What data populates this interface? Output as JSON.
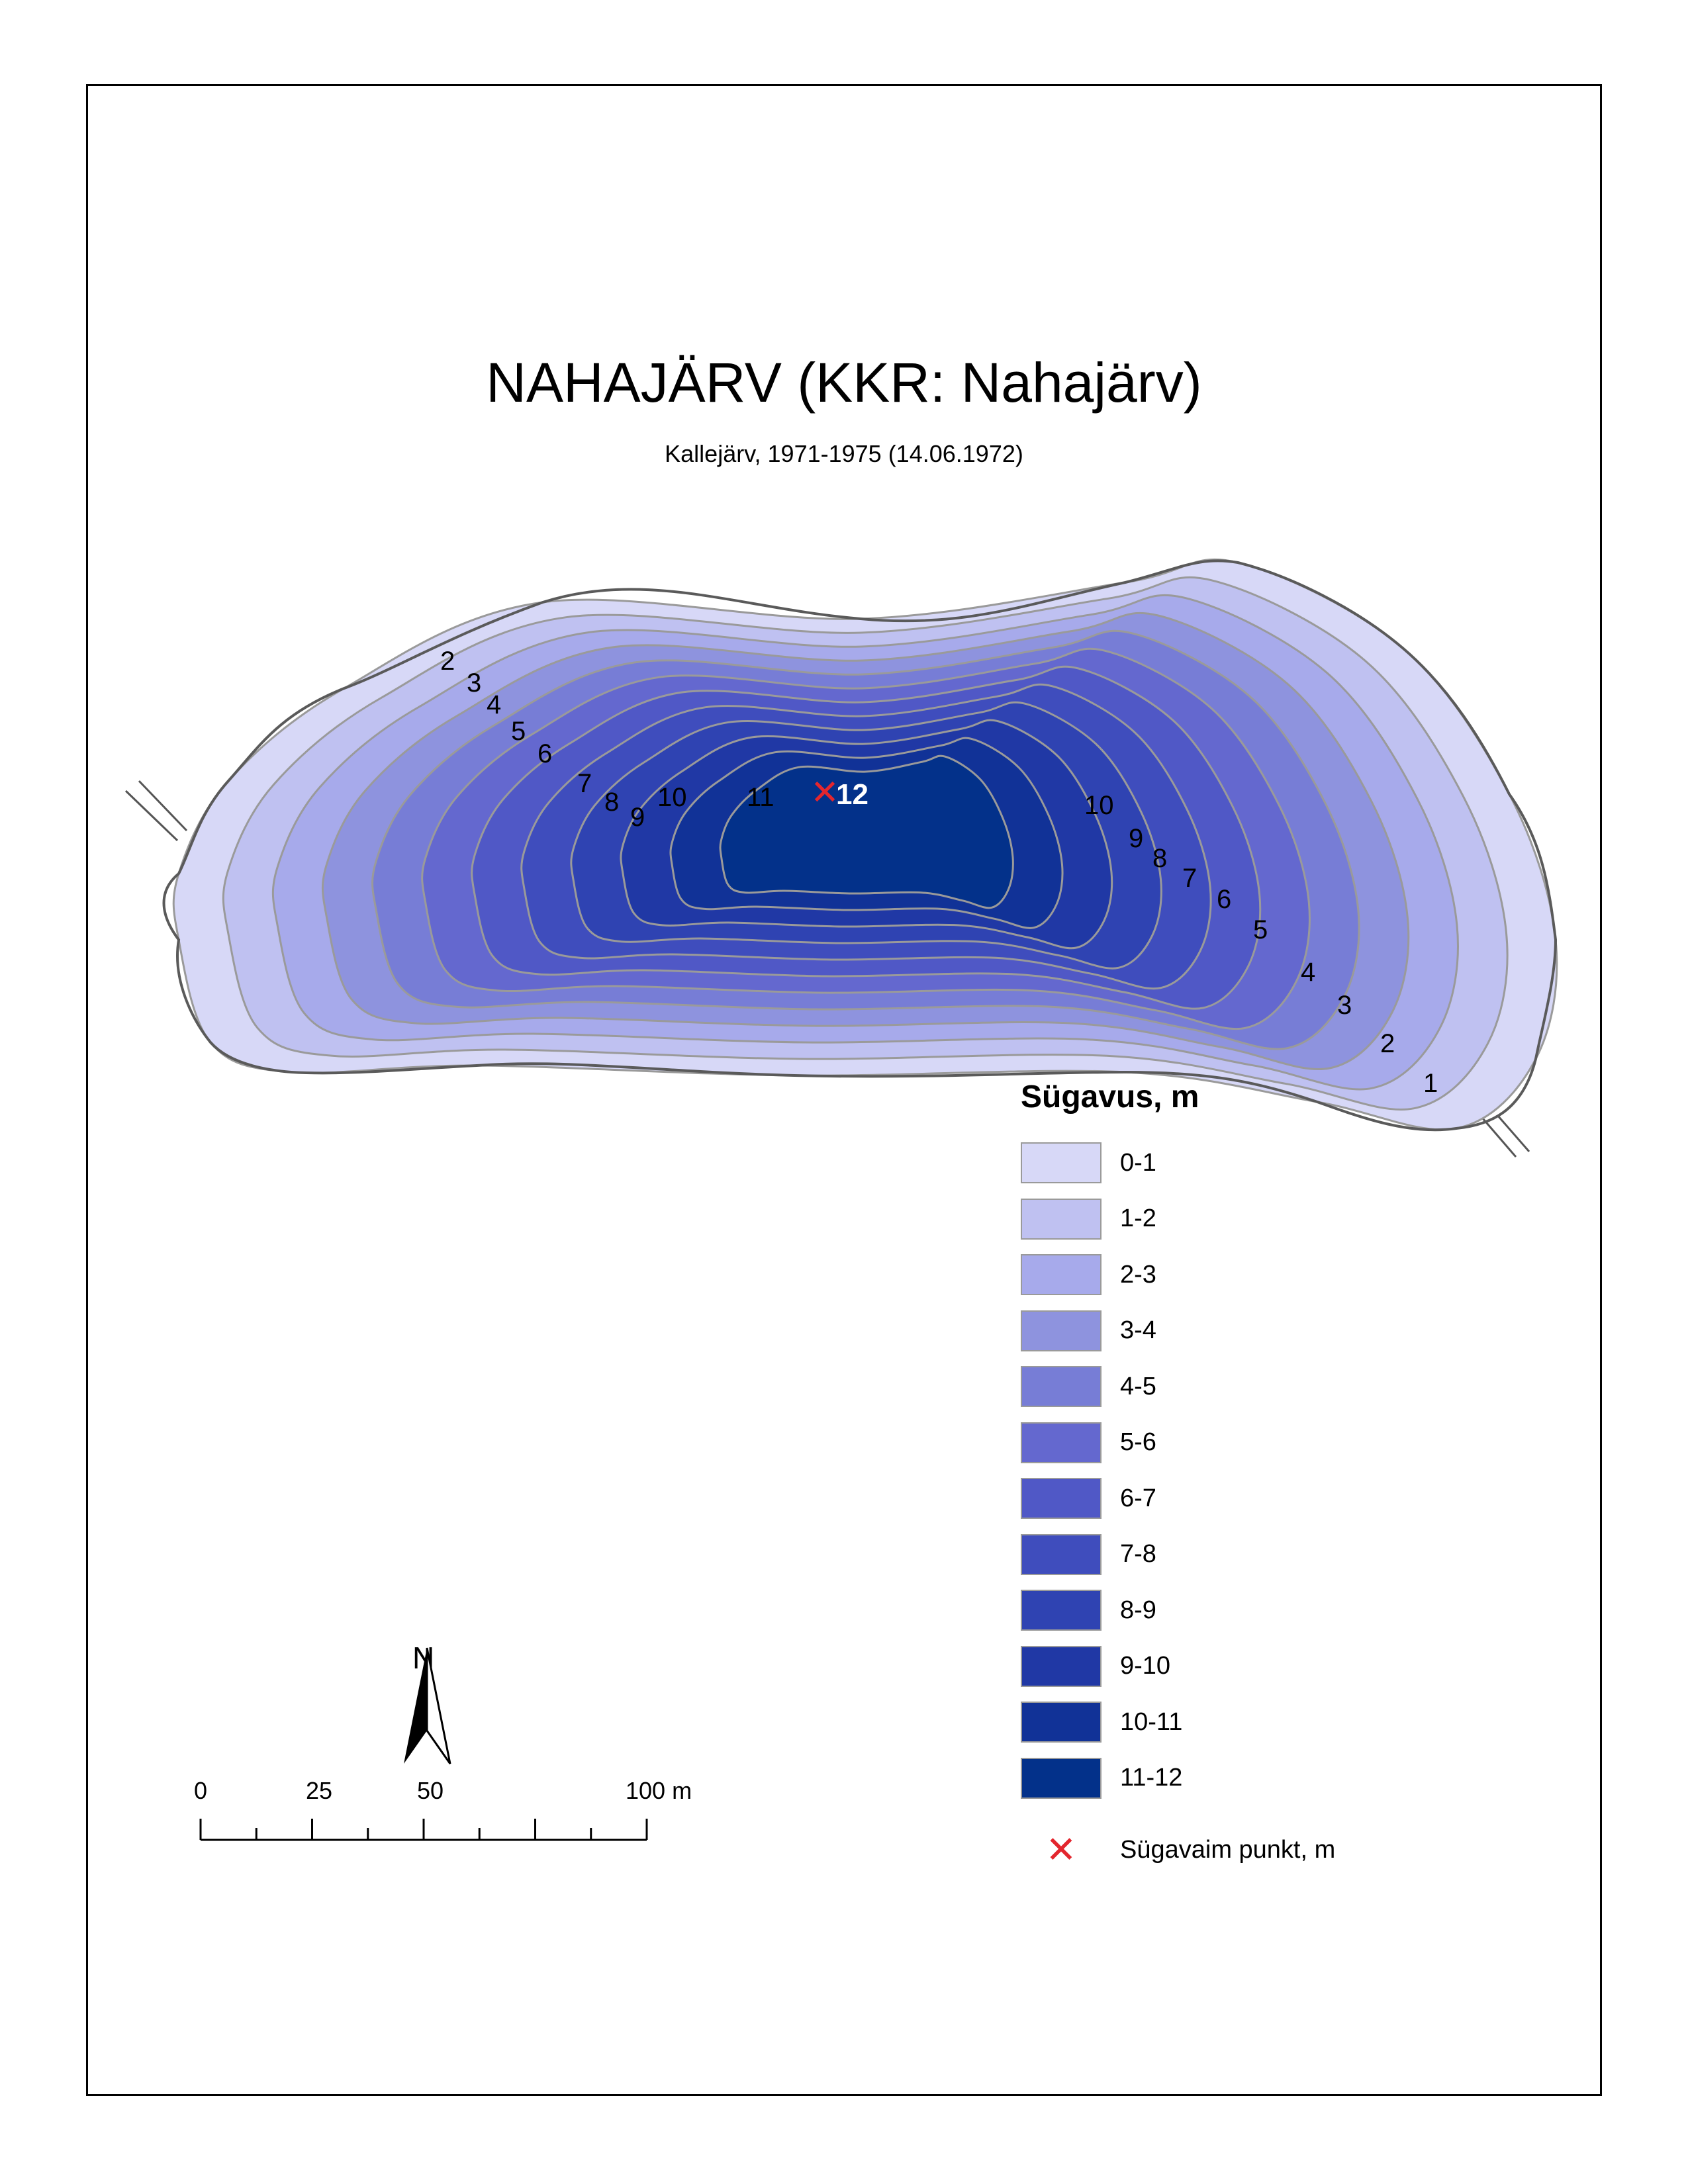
{
  "map": {
    "title": "NAHAJÄRV (KKR: Nahajärv)",
    "subtitle": "Kallejärv, 1971-1975 (14.06.1972)"
  },
  "legend": {
    "heading": "Sügavus, m",
    "classes": [
      {
        "label": "0-1",
        "color": "#d7d8f7"
      },
      {
        "label": "1-2",
        "color": "#bfc1f1"
      },
      {
        "label": "2-3",
        "color": "#a7aaeb"
      },
      {
        "label": "3-4",
        "color": "#8e93de"
      },
      {
        "label": "4-5",
        "color": "#777dd6"
      },
      {
        "label": "5-6",
        "color": "#6468cf"
      },
      {
        "label": "6-7",
        "color": "#5058c6"
      },
      {
        "label": "7-8",
        "color": "#3f4dbd"
      },
      {
        "label": "8-9",
        "color": "#2f43b2"
      },
      {
        "label": "9-10",
        "color": "#2038a5"
      },
      {
        "label": "10-11",
        "color": "#113297"
      },
      {
        "label": "11-12",
        "color": "#03318a"
      }
    ],
    "deepest_point_label": "Sügavaim punkt, m",
    "deepest_point_color": "#e3262e"
  },
  "contour_labels": [
    "1",
    "2",
    "3",
    "4",
    "5",
    "6",
    "7",
    "8",
    "9",
    "10",
    "11"
  ],
  "deepest_point_value": "12",
  "north_arrow": {
    "letter": "N"
  },
  "scale_bar": {
    "labels": [
      "0",
      "25",
      "50",
      "100 m"
    ]
  }
}
